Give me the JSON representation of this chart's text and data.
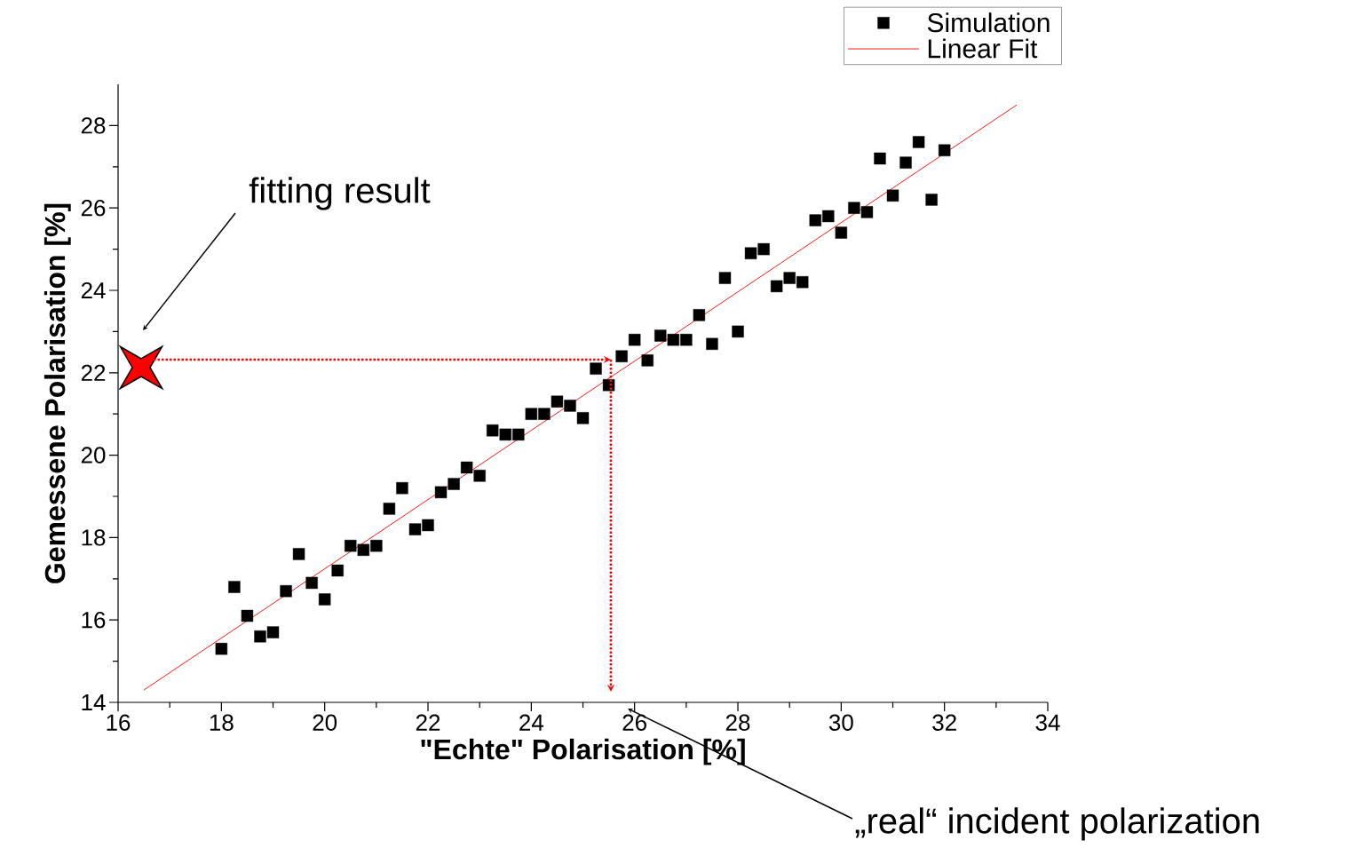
{
  "chart_data": {
    "type": "scatter",
    "xlabel": "\"Echte\" Polarisation [%]",
    "ylabel": "Gemessene Polarisation [%]",
    "xlim": [
      16,
      34
    ],
    "ylim": [
      14,
      29
    ],
    "xticks": [
      16,
      18,
      20,
      22,
      24,
      26,
      28,
      30,
      32,
      34
    ],
    "yticks": [
      14,
      16,
      18,
      20,
      22,
      24,
      26,
      28
    ],
    "legend": "top right",
    "series": [
      {
        "name": "Simulation",
        "marker": "square",
        "color": "#000000",
        "x": [
          18,
          18.25,
          18.5,
          18.75,
          19,
          19.25,
          19.5,
          19.75,
          20,
          20.25,
          20.5,
          20.75,
          21,
          21.25,
          21.5,
          21.75,
          22,
          22.25,
          22.5,
          22.75,
          23,
          23.25,
          23.5,
          23.75,
          24,
          24.25,
          24.5,
          24.75,
          25,
          25.25,
          25.5,
          25.75,
          26,
          26.25,
          26.5,
          26.75,
          27,
          27.25,
          27.5,
          27.75,
          28,
          28.25,
          28.5,
          28.75,
          29,
          29.25,
          29.5,
          29.75,
          30,
          30.25,
          30.5,
          30.75,
          31,
          31.25,
          31.5,
          31.75,
          32
        ],
        "values": [
          15.3,
          16.8,
          16.1,
          15.6,
          15.7,
          16.7,
          17.6,
          16.9,
          16.5,
          17.2,
          17.8,
          17.7,
          17.8,
          18.7,
          19.2,
          18.2,
          18.3,
          19.1,
          19.3,
          19.7,
          19.5,
          20.6,
          20.5,
          20.5,
          21.0,
          21.0,
          21.3,
          21.2,
          20.9,
          22.1,
          21.7,
          22.4,
          22.8,
          22.3,
          22.9,
          22.8,
          22.8,
          23.4,
          22.7,
          24.3,
          23.0,
          24.9,
          25.0,
          24.1,
          24.3,
          24.2,
          25.7,
          25.8,
          25.4,
          26.0,
          25.9,
          27.2,
          26.3,
          27.1,
          27.6,
          26.2,
          27.4
        ]
      },
      {
        "name": "Linear Fit",
        "type": "line",
        "color": "#ff0000",
        "line_style": "solid",
        "x": [
          16.5,
          33.4
        ],
        "values": [
          14.3,
          28.5
        ]
      }
    ],
    "annotations": [
      "fitting result",
      "„real“ incident polarization"
    ]
  }
}
